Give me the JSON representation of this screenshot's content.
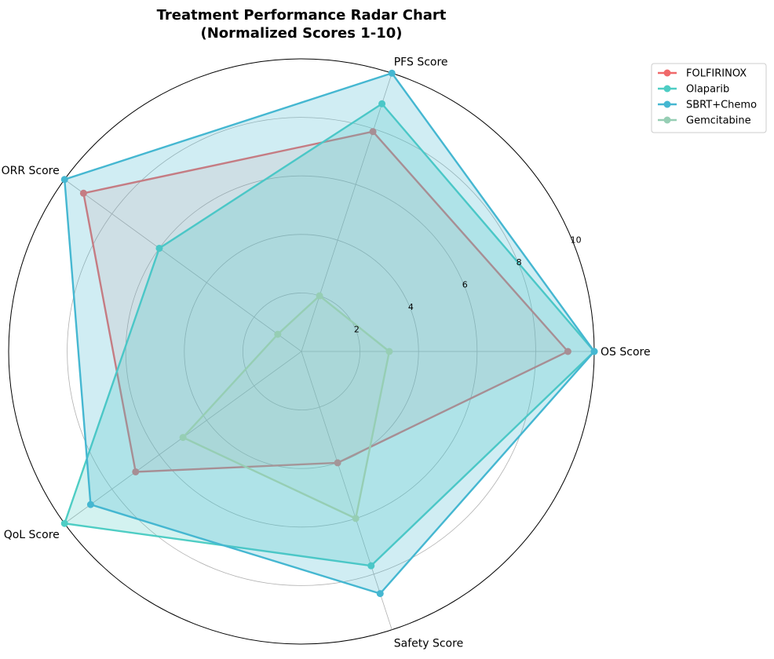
{
  "chart_data": {
    "type": "radar",
    "title": "Treatment Performance Radar Chart",
    "subtitle": "(Normalized Scores 1-10)",
    "axes": [
      "OS Score",
      "PFS Score",
      "ORR Score",
      "QoL Score",
      "Safety Score"
    ],
    "rlim": [
      0,
      10
    ],
    "rticks": [
      2,
      4,
      6,
      8,
      10
    ],
    "grid": true,
    "legend_position": "top-right",
    "series": [
      {
        "name": "FOLFIRINOX",
        "color": "#f0696a",
        "fill": false,
        "values": [
          9.1,
          7.9,
          9.2,
          7.0,
          4.0
        ]
      },
      {
        "name": "Olaparib",
        "color": "#4ecdc4",
        "fill": true,
        "values": [
          10.0,
          8.9,
          6.0,
          10.0,
          7.7
        ]
      },
      {
        "name": "SBRT+Chemo",
        "color": "#45b7d1",
        "fill": true,
        "values": [
          10.0,
          10.0,
          10.0,
          8.9,
          8.7
        ]
      },
      {
        "name": "Gemcitabine",
        "color": "#96ceb4",
        "fill": false,
        "values": [
          3.0,
          2.0,
          1.0,
          5.0,
          6.0
        ]
      }
    ]
  }
}
